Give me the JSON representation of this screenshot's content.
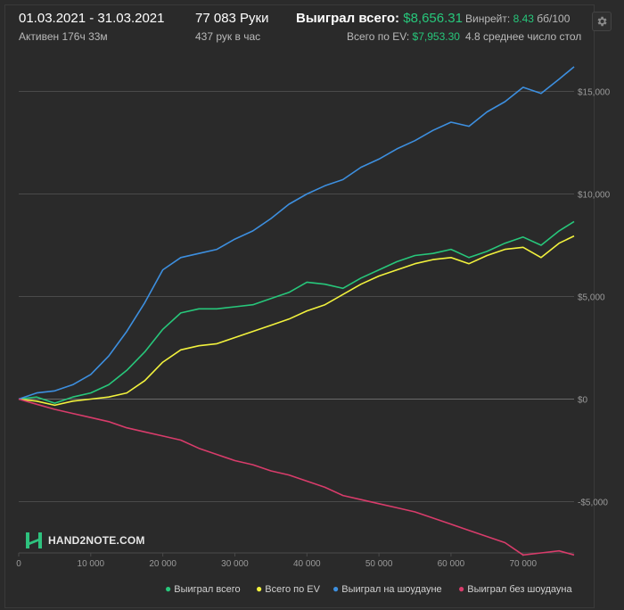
{
  "header": {
    "dates": "01.03.2021 - 31.03.2021",
    "active": "Активен 176ч 33м",
    "hands": "77 083 Руки",
    "hands_per_hour": "437 рук в час",
    "won_total_label": "Выиграл всего:",
    "won_total_value": "$8,656.31",
    "ev_total_label": "Всего по EV:",
    "ev_total_value": "$7,953.30",
    "winrate_label": "Винрейт:",
    "winrate_value": "8.43",
    "winrate_unit": "бб/100",
    "tables": "4.8 среднее число стол"
  },
  "logo": {
    "text": "HAND2NOTE.COM"
  },
  "colors": {
    "won": "#27c77b",
    "ev": "#f2f23d",
    "showdown": "#3d8fdf",
    "non_showdown": "#d83c6b"
  },
  "chart_data": {
    "type": "line",
    "xlim": [
      0,
      77083
    ],
    "ylim": [
      -7500,
      16500
    ],
    "x_ticks": [
      0,
      10000,
      20000,
      30000,
      40000,
      50000,
      60000,
      70000
    ],
    "x_tick_labels": [
      "0",
      "10 000",
      "20 000",
      "30 000",
      "40 000",
      "50 000",
      "60 000",
      "70 000"
    ],
    "y_ticks": [
      -5000,
      0,
      5000,
      10000,
      15000
    ],
    "y_tick_labels": [
      "-$5,000",
      "$0",
      "$5,000",
      "$10,000",
      "$15,000"
    ],
    "grid": true,
    "legend_position": "bottom-right",
    "series": [
      {
        "name": "Выиграл всего",
        "color": "#27c77b",
        "x": [
          0,
          2500,
          5000,
          7500,
          10000,
          12500,
          15000,
          17500,
          20000,
          22500,
          25000,
          27500,
          30000,
          32500,
          35000,
          37500,
          40000,
          42500,
          45000,
          47500,
          50000,
          52500,
          55000,
          57500,
          60000,
          62500,
          65000,
          67500,
          70000,
          72500,
          75000,
          77083
        ],
        "values": [
          0,
          100,
          -200,
          100,
          300,
          700,
          1400,
          2300,
          3400,
          4200,
          4400,
          4400,
          4500,
          4600,
          4900,
          5200,
          5700,
          5600,
          5400,
          5900,
          6300,
          6700,
          7000,
          7100,
          7300,
          6900,
          7200,
          7600,
          7900,
          7500,
          8200,
          8656
        ]
      },
      {
        "name": "Всего по EV",
        "color": "#f2f23d",
        "x": [
          0,
          2500,
          5000,
          7500,
          10000,
          12500,
          15000,
          17500,
          20000,
          22500,
          25000,
          27500,
          30000,
          32500,
          35000,
          37500,
          40000,
          42500,
          45000,
          47500,
          50000,
          52500,
          55000,
          57500,
          60000,
          62500,
          65000,
          67500,
          70000,
          72500,
          75000,
          77083
        ],
        "values": [
          0,
          -100,
          -300,
          -100,
          0,
          100,
          300,
          900,
          1800,
          2400,
          2600,
          2700,
          3000,
          3300,
          3600,
          3900,
          4300,
          4600,
          5100,
          5600,
          6000,
          6300,
          6600,
          6800,
          6900,
          6600,
          7000,
          7300,
          7400,
          6900,
          7600,
          7953
        ]
      },
      {
        "name": "Выиграл на шоудауне",
        "color": "#3d8fdf",
        "x": [
          0,
          2500,
          5000,
          7500,
          10000,
          12500,
          15000,
          17500,
          20000,
          22500,
          25000,
          27500,
          30000,
          32500,
          35000,
          37500,
          40000,
          42500,
          45000,
          47500,
          50000,
          52500,
          55000,
          57500,
          60000,
          62500,
          65000,
          67500,
          70000,
          72500,
          75000,
          77083
        ],
        "values": [
          0,
          300,
          400,
          700,
          1200,
          2100,
          3300,
          4700,
          6300,
          6900,
          7100,
          7300,
          7800,
          8200,
          8800,
          9500,
          10000,
          10400,
          10700,
          11300,
          11700,
          12200,
          12600,
          13100,
          13500,
          13300,
          14000,
          14500,
          15200,
          14900,
          15600,
          16200
        ]
      },
      {
        "name": "Выиграл без шоудауна",
        "color": "#d83c6b",
        "x": [
          0,
          2500,
          5000,
          7500,
          10000,
          12500,
          15000,
          17500,
          20000,
          22500,
          25000,
          27500,
          30000,
          32500,
          35000,
          37500,
          40000,
          42500,
          45000,
          47500,
          50000,
          52500,
          55000,
          57500,
          60000,
          62500,
          65000,
          67500,
          70000,
          72500,
          75000,
          77083
        ],
        "values": [
          0,
          -250,
          -500,
          -700,
          -900,
          -1100,
          -1400,
          -1600,
          -1800,
          -2000,
          -2400,
          -2700,
          -3000,
          -3200,
          -3500,
          -3700,
          -4000,
          -4300,
          -4700,
          -4900,
          -5100,
          -5300,
          -5500,
          -5800,
          -6100,
          -6400,
          -6700,
          -7000,
          -7600,
          -7500,
          -7400,
          -7600
        ]
      }
    ]
  }
}
